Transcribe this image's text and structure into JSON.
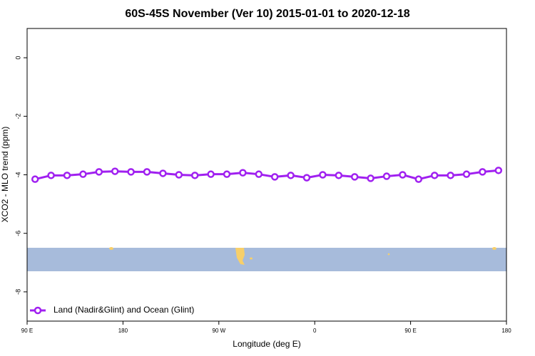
{
  "chart_data": {
    "type": "line",
    "title": "60S-45S November (Ver 10)   2015-01-01 to 2020-12-18",
    "x_label": "Longitude (deg E)",
    "y_label": "XCO2 - MLO trend (ppm)",
    "x": [
      97.5,
      112.5,
      127.5,
      142.5,
      157.5,
      172.5,
      187.5,
      202.5,
      217.5,
      232.5,
      247.5,
      262.5,
      277.5,
      292.5,
      307.5,
      322.5,
      337.5,
      352.5,
      367.5,
      382.5,
      397.5,
      412.5,
      427.5,
      442.5,
      457.5,
      472.5,
      487.5,
      502.5,
      517.5,
      532.5
    ],
    "series": [
      {
        "name": "Land (Nadir&Glint) and Ocean (Glint)",
        "color": "#a020f0",
        "values": [
          -4.15,
          -4.02,
          -4.02,
          -3.98,
          -3.9,
          -3.88,
          -3.9,
          -3.9,
          -3.95,
          -4.0,
          -4.02,
          -3.98,
          -3.98,
          -3.93,
          -3.98,
          -4.07,
          -4.02,
          -4.1,
          -4.0,
          -4.02,
          -4.07,
          -4.12,
          -4.05,
          -4.0,
          -4.15,
          -4.02,
          -4.02,
          -3.98,
          -3.9,
          -3.85
        ]
      }
    ],
    "xlim": [
      90,
      540
    ],
    "xticks": [
      {
        "value": 90,
        "label": "90 E"
      },
      {
        "value": 180,
        "label": "180"
      },
      {
        "value": 270,
        "label": "90 W"
      },
      {
        "value": 360,
        "label": "0"
      },
      {
        "value": 450,
        "label": "90 E"
      },
      {
        "value": 540,
        "label": "180"
      }
    ],
    "ylim": [
      -9,
      1
    ],
    "yticks": [
      0,
      -2,
      -4,
      -6,
      -8
    ],
    "legend": "bottom-left"
  }
}
